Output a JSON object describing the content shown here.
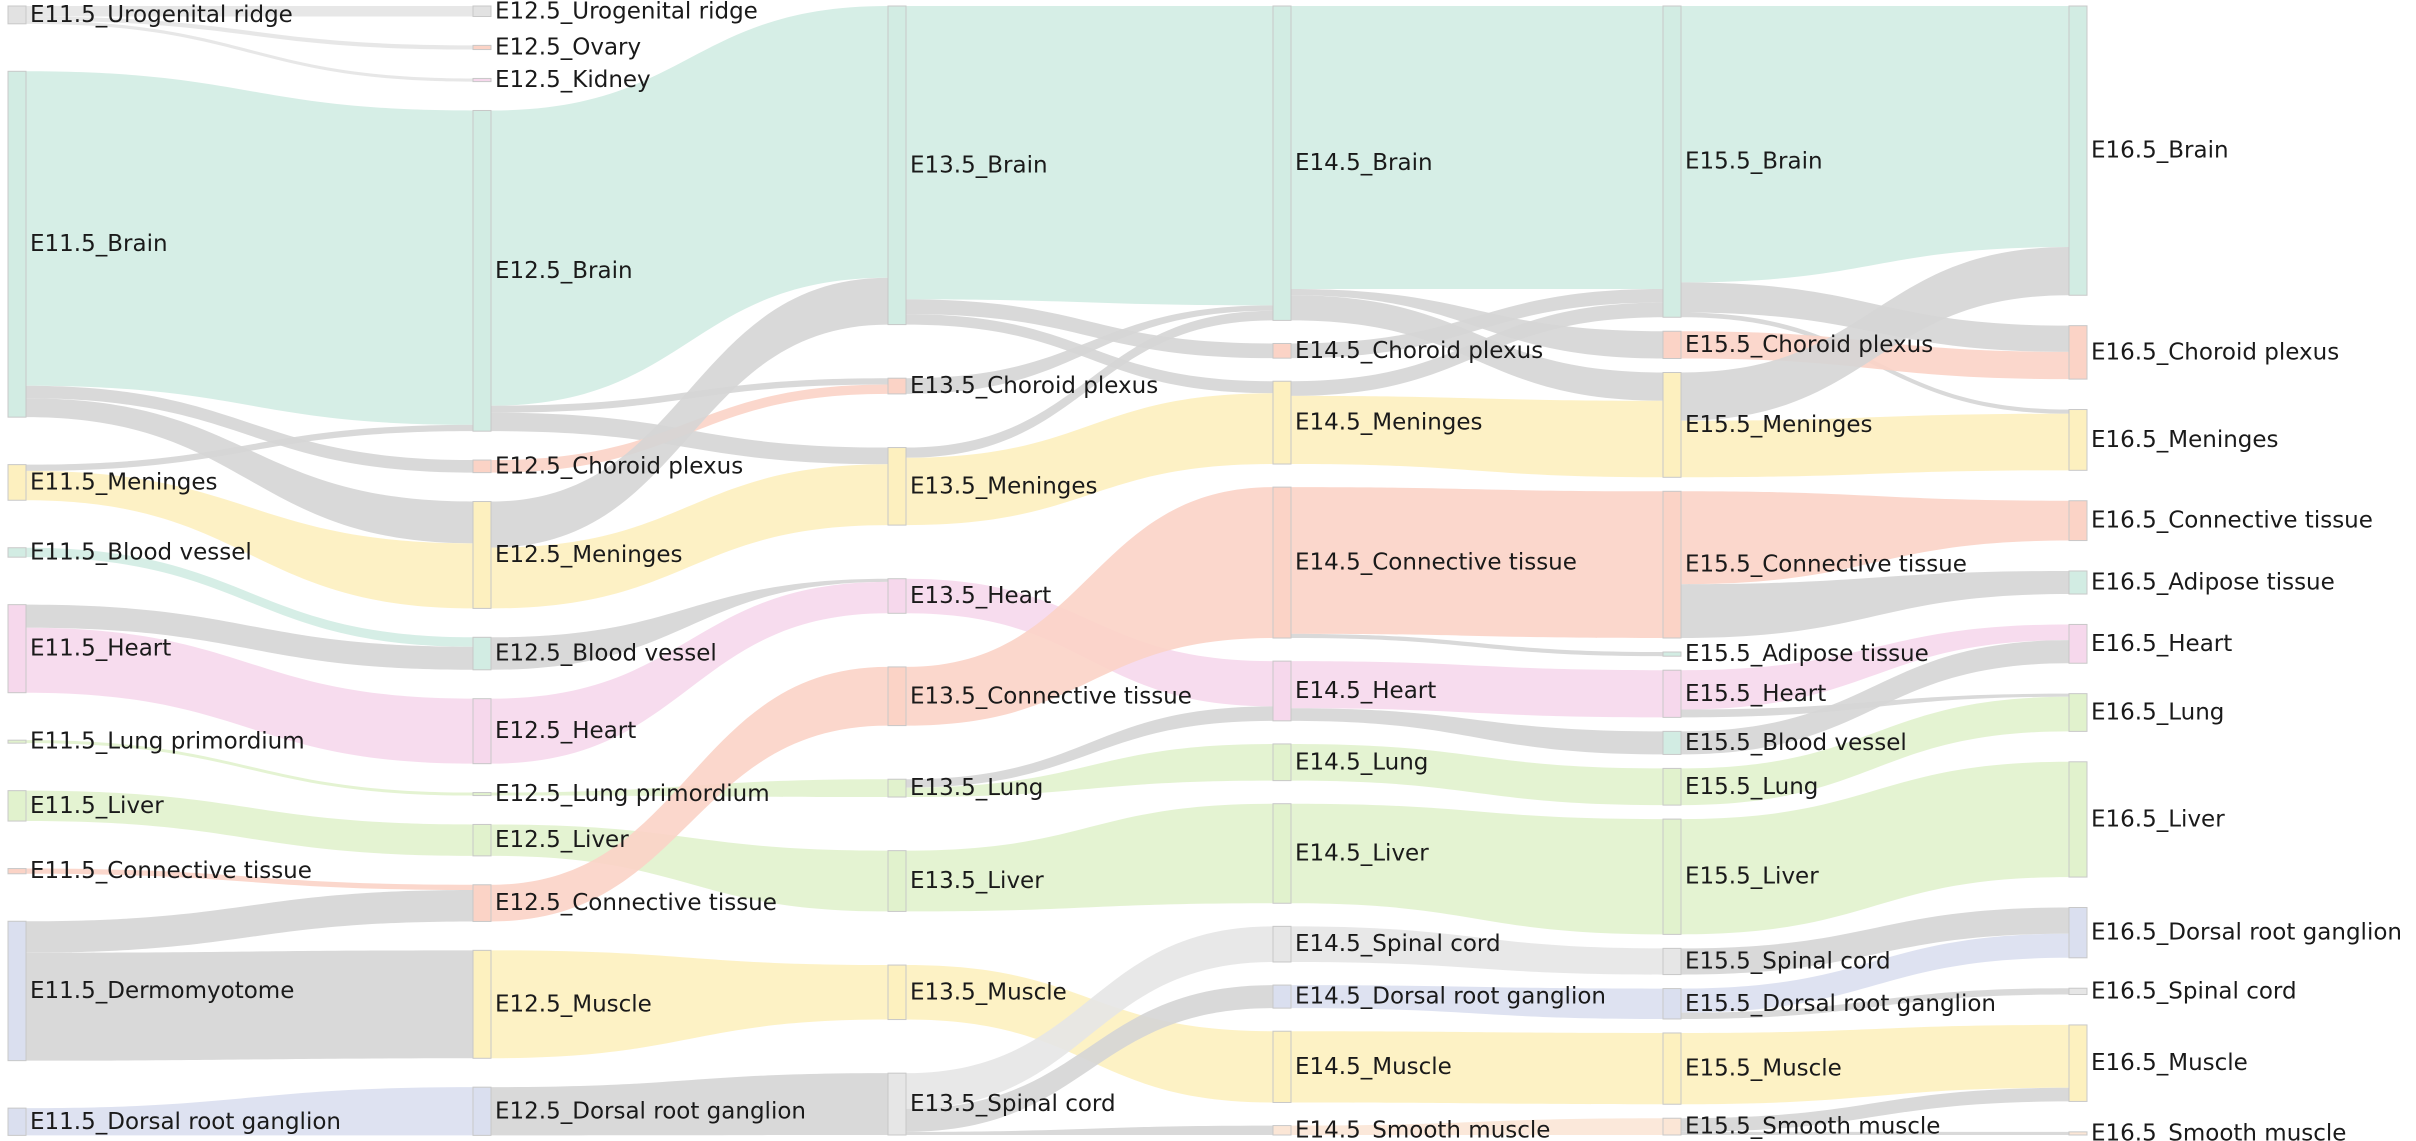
{
  "chart_data": {
    "type": "sankey",
    "stages": [
      "E11.5",
      "E12.5",
      "E13.5",
      "E14.5",
      "E15.5",
      "E16.5"
    ],
    "colors": {
      "tissue": "#d2ece3",
      "mesenchyme": "#fbd3c6",
      "meninges": "#fdf0bf",
      "heart": "#f6d8ec",
      "lung": "#e1f2cd",
      "neural": "#dadfef",
      "muscle": "#fdf1bf",
      "grey": "#d5d5d5",
      "light_grey": "#e6e6e6",
      "node_fill": "#dcdcdc"
    },
    "nodes": [
      {
        "id": "E11.5_Urogenital ridge",
        "label": "E11.5_Urogenital ridge",
        "color": "#e2e2e2"
      },
      {
        "id": "E11.5_Brain",
        "label": "E11.5_Brain",
        "color": "#d2ece3"
      },
      {
        "id": "E11.5_Meninges",
        "label": "E11.5_Meninges",
        "color": "#fdf0bf"
      },
      {
        "id": "E11.5_Blood vessel",
        "label": "E11.5_Blood vessel",
        "color": "#d2ece3"
      },
      {
        "id": "E11.5_Heart",
        "label": "E11.5_Heart",
        "color": "#f6d8ec"
      },
      {
        "id": "E11.5_Lung primordium",
        "label": "E11.5_Lung primordium",
        "color": "#e1f2cd"
      },
      {
        "id": "E11.5_Liver",
        "label": "E11.5_Liver",
        "color": "#e1f2cd"
      },
      {
        "id": "E11.5_Connective tissue",
        "label": "E11.5_Connective tissue",
        "color": "#fbd3c6"
      },
      {
        "id": "E11.5_Dermomyotome",
        "label": "E11.5_Dermomyotome",
        "color": "#dadfef"
      },
      {
        "id": "E11.5_Dorsal root ganglion",
        "label": "E11.5_Dorsal root ganglion",
        "color": "#dadfef"
      },
      {
        "id": "E12.5_Urogenital ridge",
        "label": "E12.5_Urogenital ridge",
        "color": "#e2e2e2"
      },
      {
        "id": "E12.5_Ovary",
        "label": "E12.5_Ovary",
        "color": "#fbd3c6"
      },
      {
        "id": "E12.5_Kidney",
        "label": "E12.5_Kidney",
        "color": "#f6d8ec"
      },
      {
        "id": "E12.5_Brain",
        "label": "E12.5_Brain",
        "color": "#d2ece3"
      },
      {
        "id": "E12.5_Choroid plexus",
        "label": "E12.5_Choroid plexus",
        "color": "#fbd3c6"
      },
      {
        "id": "E12.5_Meninges",
        "label": "E12.5_Meninges",
        "color": "#fdf0bf"
      },
      {
        "id": "E12.5_Blood vessel",
        "label": "E12.5_Blood vessel",
        "color": "#d2ece3"
      },
      {
        "id": "E12.5_Heart",
        "label": "E12.5_Heart",
        "color": "#f6d8ec"
      },
      {
        "id": "E12.5_Lung primordium",
        "label": "E12.5_Lung primordium",
        "color": "#e1f2cd"
      },
      {
        "id": "E12.5_Liver",
        "label": "E12.5_Liver",
        "color": "#e1f2cd"
      },
      {
        "id": "E12.5_Connective tissue",
        "label": "E12.5_Connective tissue",
        "color": "#fbd3c6"
      },
      {
        "id": "E12.5_Muscle",
        "label": "E12.5_Muscle",
        "color": "#fdf1bf"
      },
      {
        "id": "E12.5_Dorsal root ganglion",
        "label": "E12.5_Dorsal root ganglion",
        "color": "#dadfef"
      },
      {
        "id": "E13.5_Brain",
        "label": "E13.5_Brain",
        "color": "#d2ece3"
      },
      {
        "id": "E13.5_Choroid plexus",
        "label": "E13.5_Choroid plexus",
        "color": "#fbd3c6"
      },
      {
        "id": "E13.5_Meninges",
        "label": "E13.5_Meninges",
        "color": "#fdf0bf"
      },
      {
        "id": "E13.5_Heart",
        "label": "E13.5_Heart",
        "color": "#f6d8ec"
      },
      {
        "id": "E13.5_Connective tissue",
        "label": "E13.5_Connective tissue",
        "color": "#fbd3c6"
      },
      {
        "id": "E13.5_Lung",
        "label": "E13.5_Lung",
        "color": "#e1f2cd"
      },
      {
        "id": "E13.5_Liver",
        "label": "E13.5_Liver",
        "color": "#e1f2cd"
      },
      {
        "id": "E13.5_Muscle",
        "label": "E13.5_Muscle",
        "color": "#fdf1bf"
      },
      {
        "id": "E13.5_Spinal cord",
        "label": "E13.5_Spinal cord",
        "color": "#e6e6e6"
      },
      {
        "id": "E14.5_Brain",
        "label": "E14.5_Brain",
        "color": "#d2ece3"
      },
      {
        "id": "E14.5_Choroid plexus",
        "label": "E14.5_Choroid plexus",
        "color": "#fbd3c6"
      },
      {
        "id": "E14.5_Meninges",
        "label": "E14.5_Meninges",
        "color": "#fdf0bf"
      },
      {
        "id": "E14.5_Connective tissue",
        "label": "E14.5_Connective tissue",
        "color": "#fbd3c6"
      },
      {
        "id": "E14.5_Heart",
        "label": "E14.5_Heart",
        "color": "#f6d8ec"
      },
      {
        "id": "E14.5_Lung",
        "label": "E14.5_Lung",
        "color": "#e1f2cd"
      },
      {
        "id": "E14.5_Liver",
        "label": "E14.5_Liver",
        "color": "#e1f2cd"
      },
      {
        "id": "E14.5_Spinal cord",
        "label": "E14.5_Spinal cord",
        "color": "#e6e6e6"
      },
      {
        "id": "E14.5_Dorsal root ganglion",
        "label": "E14.5_Dorsal root ganglion",
        "color": "#dadfef"
      },
      {
        "id": "E14.5_Muscle",
        "label": "E14.5_Muscle",
        "color": "#fdf1bf"
      },
      {
        "id": "E14.5_Smooth muscle",
        "label": "E14.5_Smooth muscle",
        "color": "#fbe6d6"
      },
      {
        "id": "E15.5_Brain",
        "label": "E15.5_Brain",
        "color": "#d2ece3"
      },
      {
        "id": "E15.5_Choroid plexus",
        "label": "E15.5_Choroid plexus",
        "color": "#fbd3c6"
      },
      {
        "id": "E15.5_Meninges",
        "label": "E15.5_Meninges",
        "color": "#fdf0bf"
      },
      {
        "id": "E15.5_Connective tissue",
        "label": "E15.5_Connective tissue",
        "color": "#fbd3c6"
      },
      {
        "id": "E15.5_Adipose tissue",
        "label": "E15.5_Adipose tissue",
        "color": "#d2ece3"
      },
      {
        "id": "E15.5_Heart",
        "label": "E15.5_Heart",
        "color": "#f6d8ec"
      },
      {
        "id": "E15.5_Blood vessel",
        "label": "E15.5_Blood vessel",
        "color": "#d2ece3"
      },
      {
        "id": "E15.5_Lung",
        "label": "E15.5_Lung",
        "color": "#e1f2cd"
      },
      {
        "id": "E15.5_Liver",
        "label": "E15.5_Liver",
        "color": "#e1f2cd"
      },
      {
        "id": "E15.5_Spinal cord",
        "label": "E15.5_Spinal cord",
        "color": "#e6e6e6"
      },
      {
        "id": "E15.5_Dorsal root ganglion",
        "label": "E15.5_Dorsal root ganglion",
        "color": "#dadfef"
      },
      {
        "id": "E15.5_Muscle",
        "label": "E15.5_Muscle",
        "color": "#fdf1bf"
      },
      {
        "id": "E15.5_Smooth muscle",
        "label": "E15.5_Smooth muscle",
        "color": "#fbe6d6"
      },
      {
        "id": "E16.5_Brain",
        "label": "E16.5_Brain",
        "color": "#d2ece3"
      },
      {
        "id": "E16.5_Choroid plexus",
        "label": "E16.5_Choroid plexus",
        "color": "#fbd3c6"
      },
      {
        "id": "E16.5_Meninges",
        "label": "E16.5_Meninges",
        "color": "#fdf0bf"
      },
      {
        "id": "E16.5_Connective tissue",
        "label": "E16.5_Connective tissue",
        "color": "#fbd3c6"
      },
      {
        "id": "E16.5_Adipose tissue",
        "label": "E16.5_Adipose tissue",
        "color": "#d2ece3"
      },
      {
        "id": "E16.5_Heart",
        "label": "E16.5_Heart",
        "color": "#f6d8ec"
      },
      {
        "id": "E16.5_Lung",
        "label": "E16.5_Lung",
        "color": "#e1f2cd"
      },
      {
        "id": "E16.5_Liver",
        "label": "E16.5_Liver",
        "color": "#e1f2cd"
      },
      {
        "id": "E16.5_Dorsal root ganglion",
        "label": "E16.5_Dorsal root ganglion",
        "color": "#dadfef"
      },
      {
        "id": "E16.5_Spinal cord",
        "label": "E16.5_Spinal cord",
        "color": "#e6e6e6"
      },
      {
        "id": "E16.5_Muscle",
        "label": "E16.5_Muscle",
        "color": "#fdf1bf"
      },
      {
        "id": "E16.5_Smooth muscle",
        "label": "E16.5_Smooth muscle",
        "color": "#fbe6d6"
      }
    ],
    "links": [
      {
        "source": "E11.5_Urogenital ridge",
        "target": "E12.5_Urogenital ridge",
        "value": 1.0,
        "color": "#e4e4e4"
      },
      {
        "source": "E11.5_Urogenital ridge",
        "target": "E12.5_Ovary",
        "value": 0.4,
        "color": "#e4e4e4"
      },
      {
        "source": "E11.5_Urogenital ridge",
        "target": "E12.5_Kidney",
        "value": 0.3,
        "color": "#e4e4e4"
      },
      {
        "source": "E11.5_Brain",
        "target": "E12.5_Brain",
        "value": 30.0,
        "color": "#d2ece3"
      },
      {
        "source": "E11.5_Brain",
        "target": "E12.5_Choroid plexus",
        "value": 1.2,
        "color": "#d5d5d5"
      },
      {
        "source": "E11.5_Brain",
        "target": "E12.5_Meninges",
        "value": 1.8,
        "color": "#d5d5d5"
      },
      {
        "source": "E11.5_Meninges",
        "target": "E12.5_Brain",
        "value": 0.6,
        "color": "#d5d5d5"
      },
      {
        "source": "E11.5_Meninges",
        "target": "E12.5_Meninges",
        "value": 2.8,
        "color": "#fdf0bf"
      },
      {
        "source": "E11.5_Blood vessel",
        "target": "E12.5_Blood vessel",
        "value": 0.9,
        "color": "#d2ece3"
      },
      {
        "source": "E11.5_Heart",
        "target": "E12.5_Blood vessel",
        "value": 2.2,
        "color": "#d5d5d5"
      },
      {
        "source": "E11.5_Heart",
        "target": "E12.5_Heart",
        "value": 6.2,
        "color": "#f6d8ec"
      },
      {
        "source": "E11.5_Lung primordium",
        "target": "E12.5_Lung primordium",
        "value": 0.25,
        "color": "#e1f2cd"
      },
      {
        "source": "E11.5_Liver",
        "target": "E12.5_Liver",
        "value": 2.9,
        "color": "#e1f2cd"
      },
      {
        "source": "E11.5_Connective tissue",
        "target": "E12.5_Connective tissue",
        "value": 0.5,
        "color": "#fbd3c6"
      },
      {
        "source": "E11.5_Dermomyotome",
        "target": "E12.5_Connective tissue",
        "value": 3.0,
        "color": "#d5d5d5"
      },
      {
        "source": "E11.5_Dermomyotome",
        "target": "E12.5_Muscle",
        "value": 10.3,
        "color": "#d5d5d5"
      },
      {
        "source": "E11.5_Dorsal root ganglion",
        "target": "E12.5_Dorsal root ganglion",
        "value": 2.6,
        "color": "#dadfef"
      },
      {
        "source": "E12.5_Brain",
        "target": "E13.5_Brain",
        "value": 25.5,
        "color": "#d2ece3"
      },
      {
        "source": "E12.5_Brain",
        "target": "E13.5_Choroid plexus",
        "value": 0.6,
        "color": "#d5d5d5"
      },
      {
        "source": "E12.5_Brain",
        "target": "E13.5_Meninges",
        "value": 1.6,
        "color": "#d5d5d5"
      },
      {
        "source": "E12.5_Choroid plexus",
        "target": "E13.5_Choroid plexus",
        "value": 0.9,
        "color": "#fbd3c6"
      },
      {
        "source": "E12.5_Meninges",
        "target": "E13.5_Brain",
        "value": 4.4,
        "color": "#d5d5d5"
      },
      {
        "source": "E12.5_Meninges",
        "target": "E13.5_Meninges",
        "value": 5.8,
        "color": "#fdf0bf"
      },
      {
        "source": "E12.5_Blood vessel",
        "target": "E13.5_Heart",
        "value": 0.3,
        "color": "#d5d5d5"
      },
      {
        "source": "E12.5_Heart",
        "target": "E13.5_Heart",
        "value": 3.0,
        "color": "#f6d8ec"
      },
      {
        "source": "E12.5_Lung primordium",
        "target": "E13.5_Lung",
        "value": 0.2,
        "color": "#e1f2cd"
      },
      {
        "source": "E12.5_Liver",
        "target": "E13.5_Liver",
        "value": 3.0,
        "color": "#e1f2cd"
      },
      {
        "source": "E12.5_Connective tissue",
        "target": "E13.5_Connective tissue",
        "value": 2.2,
        "color": "#fbd3c6"
      },
      {
        "source": "E12.5_Muscle",
        "target": "E13.5_Muscle",
        "value": 3.5,
        "color": "#fdf1bf"
      },
      {
        "source": "E12.5_Dorsal root ganglion",
        "target": "E13.5_Spinal cord",
        "value": 4.6,
        "color": "#d5d5d5"
      },
      {
        "source": "E13.5_Brain",
        "target": "E14.5_Brain",
        "value": 28.0,
        "color": "#d2ece3"
      },
      {
        "source": "E13.5_Brain",
        "target": "E14.5_Choroid plexus",
        "value": 1.4,
        "color": "#d5d5d5"
      },
      {
        "source": "E13.5_Brain",
        "target": "E14.5_Meninges",
        "value": 1.0,
        "color": "#d5d5d5"
      },
      {
        "source": "E13.5_Choroid plexus",
        "target": "E14.5_Brain",
        "value": 0.5,
        "color": "#d5d5d5"
      },
      {
        "source": "E13.5_Meninges",
        "target": "E14.5_Brain",
        "value": 0.9,
        "color": "#d5d5d5"
      },
      {
        "source": "E13.5_Meninges",
        "target": "E14.5_Meninges",
        "value": 5.9,
        "color": "#fdf0bf"
      },
      {
        "source": "E13.5_Heart",
        "target": "E14.5_Heart",
        "value": 2.5,
        "color": "#f6d8ec"
      },
      {
        "source": "E13.5_Connective tissue",
        "target": "E14.5_Connective tissue",
        "value": 5.6,
        "color": "#fbd3c6"
      },
      {
        "source": "E13.5_Lung",
        "target": "E14.5_Heart",
        "value": 0.8,
        "color": "#d5d5d5"
      },
      {
        "source": "E13.5_Lung",
        "target": "E14.5_Lung",
        "value": 0.9,
        "color": "#e1f2cd"
      },
      {
        "source": "E13.5_Liver",
        "target": "E14.5_Liver",
        "value": 5.8,
        "color": "#e1f2cd"
      },
      {
        "source": "E13.5_Muscle",
        "target": "E14.5_Muscle",
        "value": 5.2,
        "color": "#fdf1bf"
      },
      {
        "source": "E13.5_Spinal cord",
        "target": "E14.5_Spinal cord",
        "value": 3.4,
        "color": "#e6e6e6"
      },
      {
        "source": "E13.5_Spinal cord",
        "target": "E14.5_Dorsal root ganglion",
        "value": 2.2,
        "color": "#d5d5d5"
      },
      {
        "source": "E13.5_Spinal cord",
        "target": "E14.5_Smooth muscle",
        "value": 0.3,
        "color": "#d5d5d5"
      },
      {
        "source": "E14.5_Brain",
        "target": "E15.5_Brain",
        "value": 27.0,
        "color": "#d2ece3"
      },
      {
        "source": "E14.5_Brain",
        "target": "E15.5_Choroid plexus",
        "value": 0.6,
        "color": "#d5d5d5"
      },
      {
        "source": "E14.5_Brain",
        "target": "E15.5_Meninges",
        "value": 2.4,
        "color": "#d5d5d5"
      },
      {
        "source": "E14.5_Choroid plexus",
        "target": "E15.5_Brain",
        "value": 1.3,
        "color": "#d5d5d5"
      },
      {
        "source": "E14.5_Meninges",
        "target": "E15.5_Brain",
        "value": 1.4,
        "color": "#d5d5d5"
      },
      {
        "source": "E14.5_Meninges",
        "target": "E15.5_Meninges",
        "value": 6.5,
        "color": "#fdf0bf"
      },
      {
        "source": "E14.5_Connective tissue",
        "target": "E15.5_Connective tissue",
        "value": 14.0,
        "color": "#fbd3c6"
      },
      {
        "source": "E14.5_Connective tissue",
        "target": "E15.5_Adipose tissue",
        "value": 0.4,
        "color": "#d5d5d5"
      },
      {
        "source": "E14.5_Heart",
        "target": "E15.5_Heart",
        "value": 4.5,
        "color": "#f6d8ec"
      },
      {
        "source": "E14.5_Heart",
        "target": "E15.5_Blood vessel",
        "value": 1.2,
        "color": "#d5d5d5"
      },
      {
        "source": "E14.5_Lung",
        "target": "E15.5_Lung",
        "value": 3.5,
        "color": "#e1f2cd"
      },
      {
        "source": "E14.5_Liver",
        "target": "E15.5_Liver",
        "value": 9.5,
        "color": "#e1f2cd"
      },
      {
        "source": "E14.5_Spinal cord",
        "target": "E15.5_Spinal cord",
        "value": 1.3,
        "color": "#e6e6e6"
      },
      {
        "source": "E14.5_Dorsal root ganglion",
        "target": "E15.5_Dorsal root ganglion",
        "value": 1.0,
        "color": "#dadfef"
      },
      {
        "source": "E14.5_Muscle",
        "target": "E15.5_Muscle",
        "value": 6.8,
        "color": "#fdf1bf"
      },
      {
        "source": "E14.5_Smooth muscle",
        "target": "E15.5_Smooth muscle",
        "value": 0.9,
        "color": "#fbe6d6"
      },
      {
        "source": "E15.5_Brain",
        "target": "E16.5_Brain",
        "value": 23.0,
        "color": "#d2ece3"
      },
      {
        "source": "E15.5_Brain",
        "target": "E16.5_Choroid plexus",
        "value": 2.5,
        "color": "#d5d5d5"
      },
      {
        "source": "E15.5_Brain",
        "target": "E16.5_Meninges",
        "value": 0.4,
        "color": "#d5d5d5"
      },
      {
        "source": "E15.5_Choroid plexus",
        "target": "E16.5_Choroid plexus",
        "value": 2.6,
        "color": "#fbd3c6"
      },
      {
        "source": "E15.5_Meninges",
        "target": "E16.5_Brain",
        "value": 4.6,
        "color": "#d5d5d5"
      },
      {
        "source": "E15.5_Meninges",
        "target": "E16.5_Meninges",
        "value": 5.4,
        "color": "#fdf0bf"
      },
      {
        "source": "E15.5_Connective tissue",
        "target": "E16.5_Connective tissue",
        "value": 3.8,
        "color": "#fbd3c6"
      },
      {
        "source": "E15.5_Connective tissue",
        "target": "E16.5_Adipose tissue",
        "value": 2.2,
        "color": "#d5d5d5"
      },
      {
        "source": "E15.5_Heart",
        "target": "E16.5_Heart",
        "value": 1.5,
        "color": "#f6d8ec"
      },
      {
        "source": "E15.5_Heart",
        "target": "E16.5_Lung",
        "value": 0.3,
        "color": "#d5d5d5"
      },
      {
        "source": "E15.5_Blood vessel",
        "target": "E16.5_Heart",
        "value": 2.2,
        "color": "#d5d5d5"
      },
      {
        "source": "E15.5_Lung",
        "target": "E16.5_Lung",
        "value": 3.3,
        "color": "#e1f2cd"
      },
      {
        "source": "E15.5_Liver",
        "target": "E16.5_Liver",
        "value": 11.0,
        "color": "#e1f2cd"
      },
      {
        "source": "E15.5_Spinal cord",
        "target": "E16.5_Dorsal root ganglion",
        "value": 2.5,
        "color": "#d5d5d5"
      },
      {
        "source": "E15.5_Dorsal root ganglion",
        "target": "E16.5_Dorsal root ganglion",
        "value": 2.3,
        "color": "#dadfef"
      },
      {
        "source": "E15.5_Dorsal root ganglion",
        "target": "E16.5_Spinal cord",
        "value": 0.6,
        "color": "#d5d5d5"
      },
      {
        "source": "E15.5_Muscle",
        "target": "E16.5_Muscle",
        "value": 6.0,
        "color": "#fdf1bf"
      },
      {
        "source": "E15.5_Smooth muscle",
        "target": "E16.5_Muscle",
        "value": 1.3,
        "color": "#d5d5d5"
      },
      {
        "source": "E15.5_Smooth muscle",
        "target": "E16.5_Smooth muscle",
        "value": 0.3,
        "color": "#d5d5d5"
      }
    ]
  }
}
